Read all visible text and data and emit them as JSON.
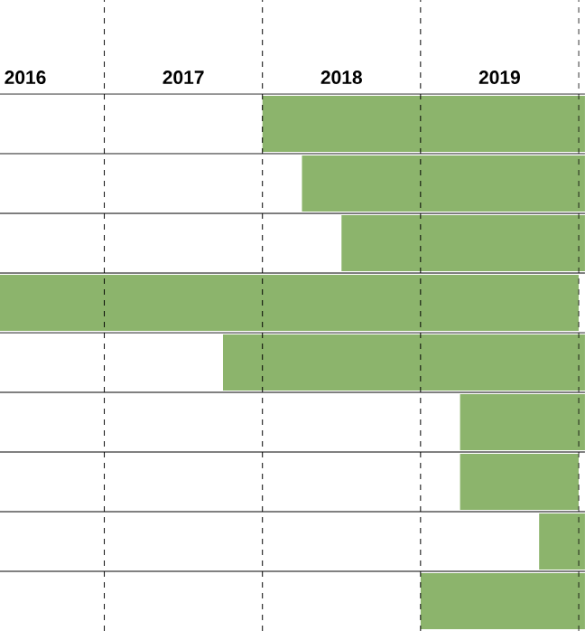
{
  "chart_data": {
    "type": "bar",
    "orientation": "horizontal",
    "categories": [
      null,
      null,
      null,
      null,
      null,
      null,
      null,
      null,
      null
    ],
    "base": [
      2018.0,
      2018.25,
      2018.5,
      2016.34,
      2017.75,
      2019.25,
      2019.25,
      2019.75,
      2019.0
    ],
    "values": [
      2.04,
      1.79,
      1.54,
      3.66,
      2.29,
      0.79,
      0.75,
      0.29,
      1.04
    ],
    "color": "#8cb46c",
    "xlim": [
      2016.34,
      2020.04
    ],
    "xticks": [
      {
        "value": 2016.5,
        "label": "2016"
      },
      {
        "value": 2017.5,
        "label": "2017"
      },
      {
        "value": 2018.5,
        "label": "2018"
      },
      {
        "value": 2019.5,
        "label": "2019"
      }
    ],
    "ref_lines": [
      {
        "axis": "x",
        "value": 2017,
        "line_style": "dashed"
      },
      {
        "axis": "x",
        "value": 2018,
        "line_style": "dashed"
      },
      {
        "axis": "x",
        "value": 2019,
        "line_style": "dashed"
      },
      {
        "axis": "x",
        "value": 2020,
        "line_style": "dashed"
      }
    ]
  }
}
